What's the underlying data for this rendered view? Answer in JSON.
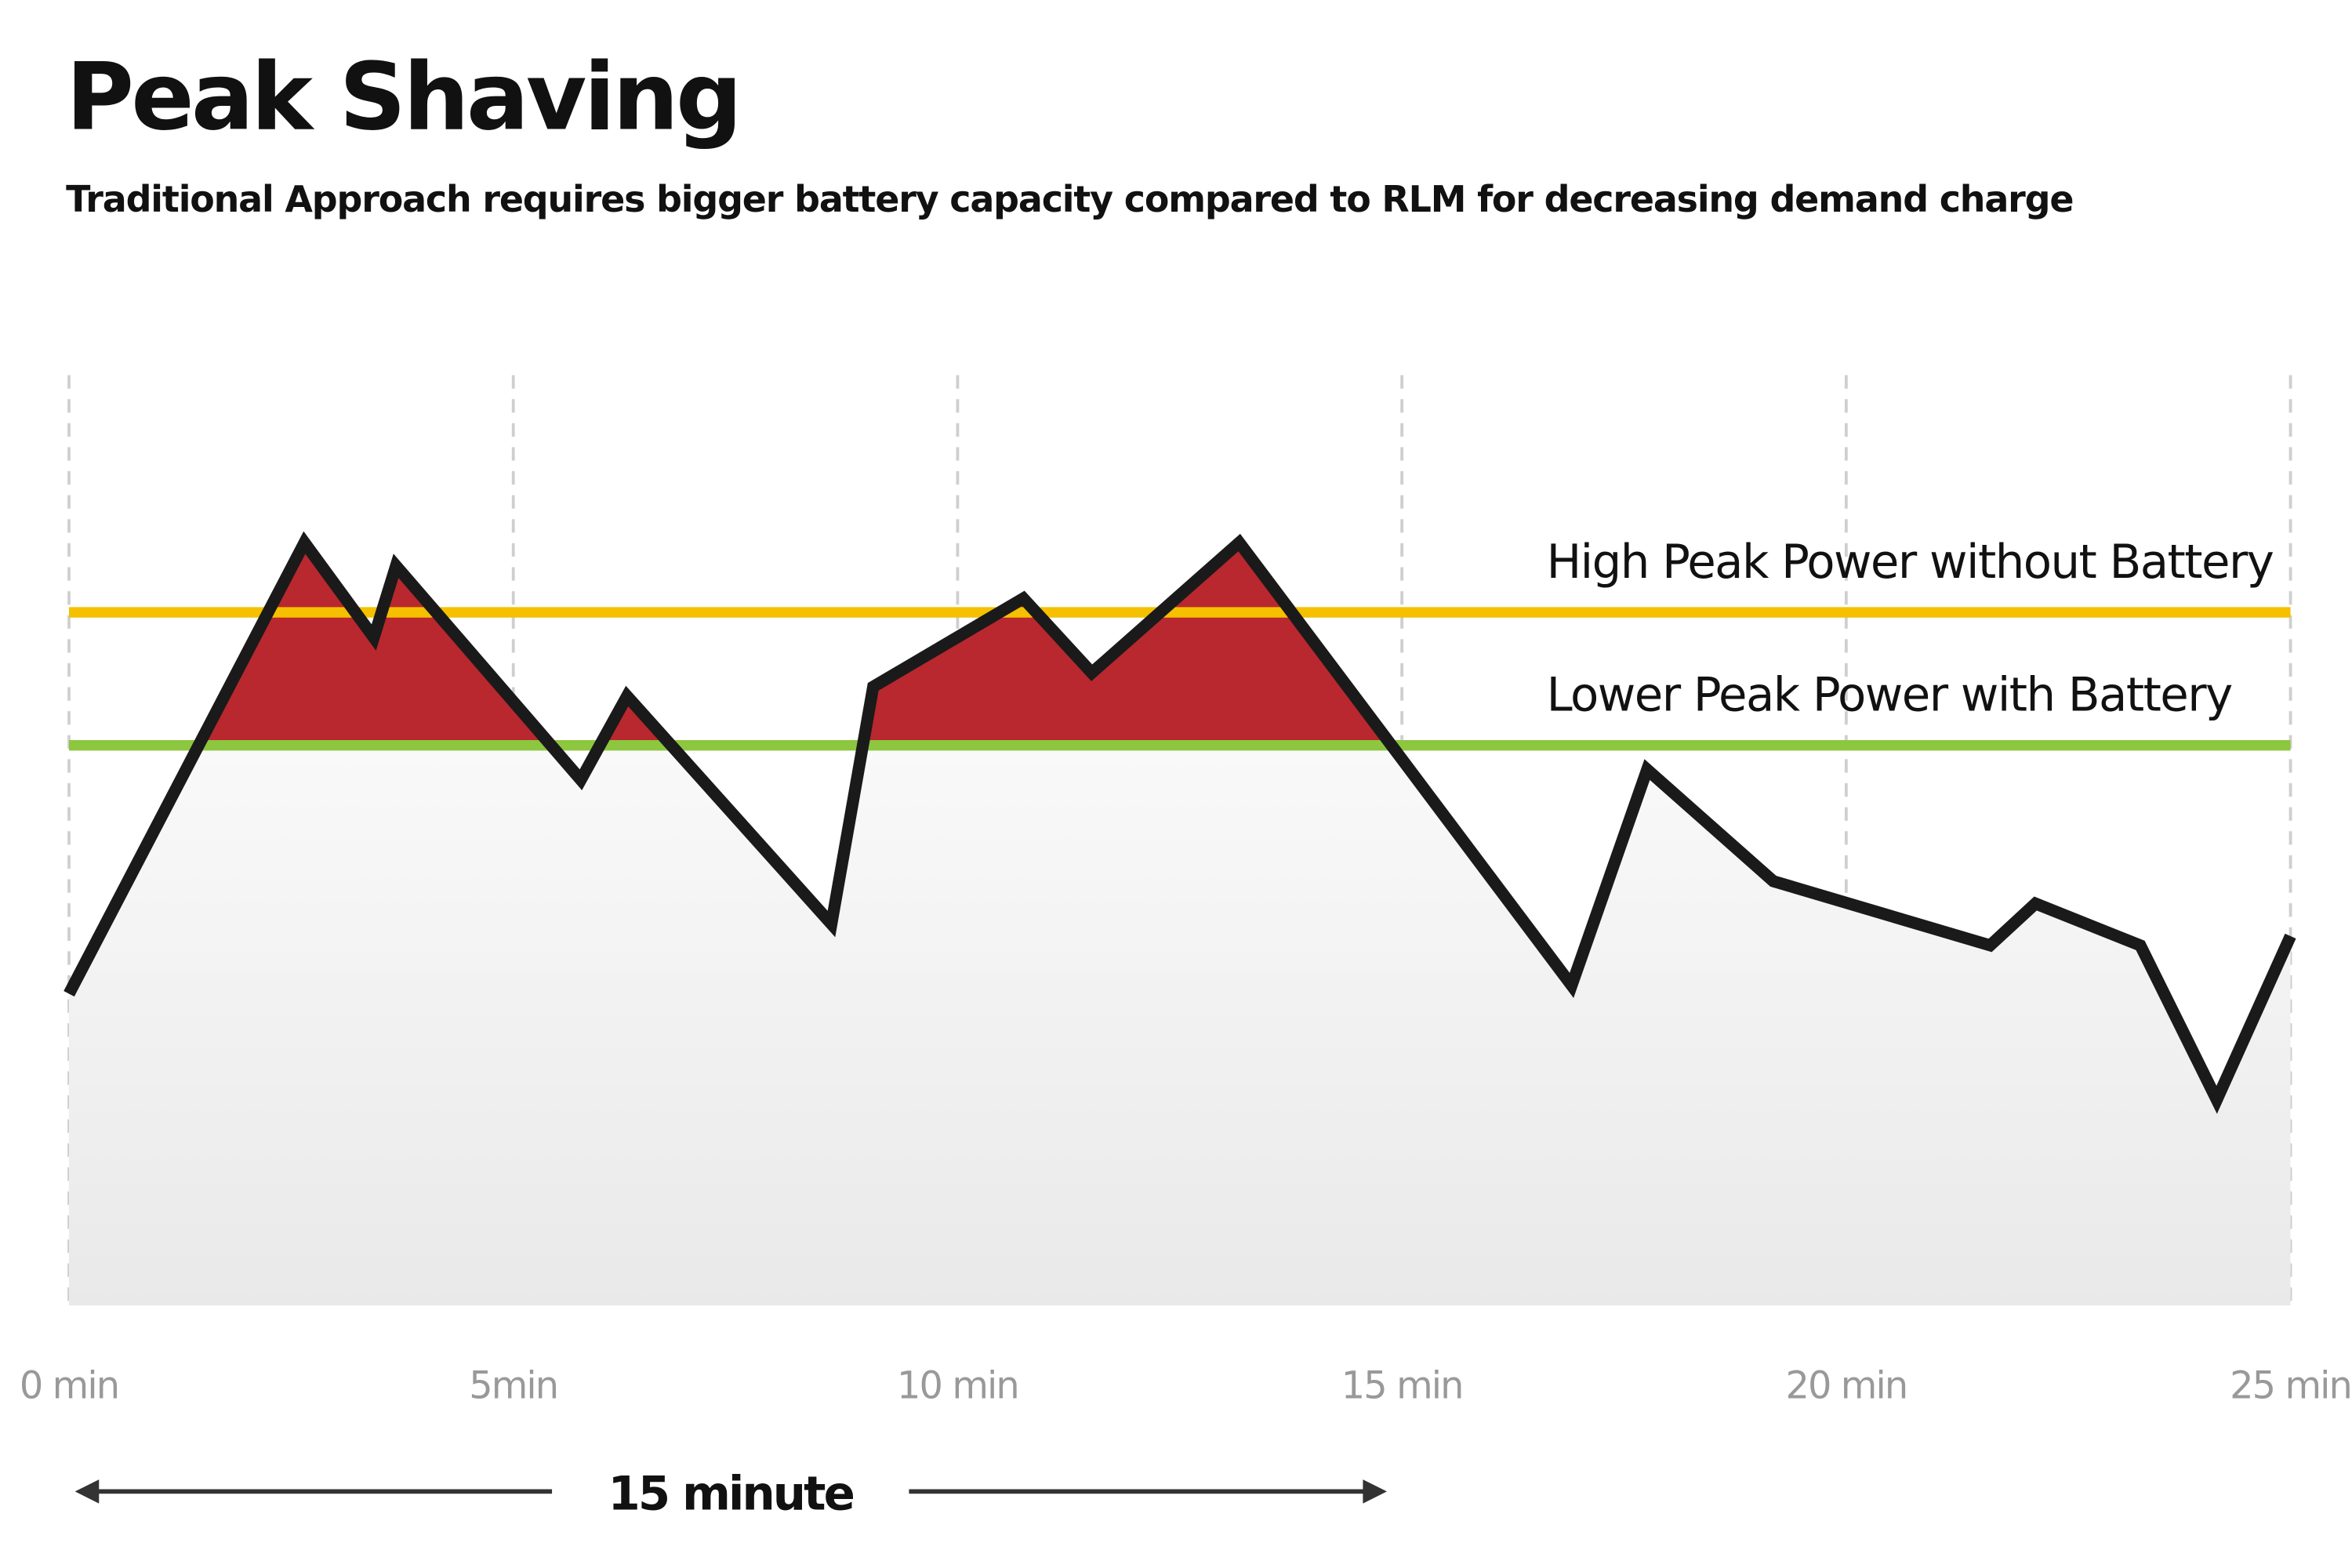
{
  "chart_data": {
    "type": "area",
    "title": "Peak Shaving",
    "subtitle": "Traditional Approach requires bigger battery capacity compared to RLM for decreasing demand charge",
    "xlabel": "",
    "ylabel": "",
    "xlim": [
      0,
      25
    ],
    "ylim": [
      0,
      100
    ],
    "grid": "vertical dashed",
    "x_ticks": [
      0,
      5,
      10,
      15,
      20,
      25
    ],
    "x_tick_labels": [
      "0 min",
      "5min",
      "10 min",
      "15 min",
      "20 min",
      "25 min"
    ],
    "series": [
      {
        "x": [
          0,
          2.65,
          3.43,
          3.68,
          5.76,
          6.28,
          8.58,
          9.05,
          10.74,
          11.51,
          13.17,
          16.91,
          17.76,
          19.18,
          21.62,
          22.13,
          23.31,
          24.17,
          25
        ],
        "y": [
          33.5,
          82,
          71.8,
          79.5,
          56.5,
          65.5,
          41,
          66.5,
          76,
          68,
          82,
          34.4,
          57.6,
          45.6,
          38.7,
          43.2,
          38.7,
          22.1,
          39.7
        ],
        "color": "#1a1a1a"
      }
    ],
    "reference_lines": [
      {
        "label": "High Peak Power without Battery",
        "y": 74.5,
        "color": "#f5c000"
      },
      {
        "label": "Lower Peak Power with Battery",
        "y": 60.2,
        "color": "#8dc63f"
      }
    ],
    "shaved_area_color": "#b8282e",
    "annotation": {
      "label": "15 minute",
      "from": 0,
      "to": 15
    }
  }
}
